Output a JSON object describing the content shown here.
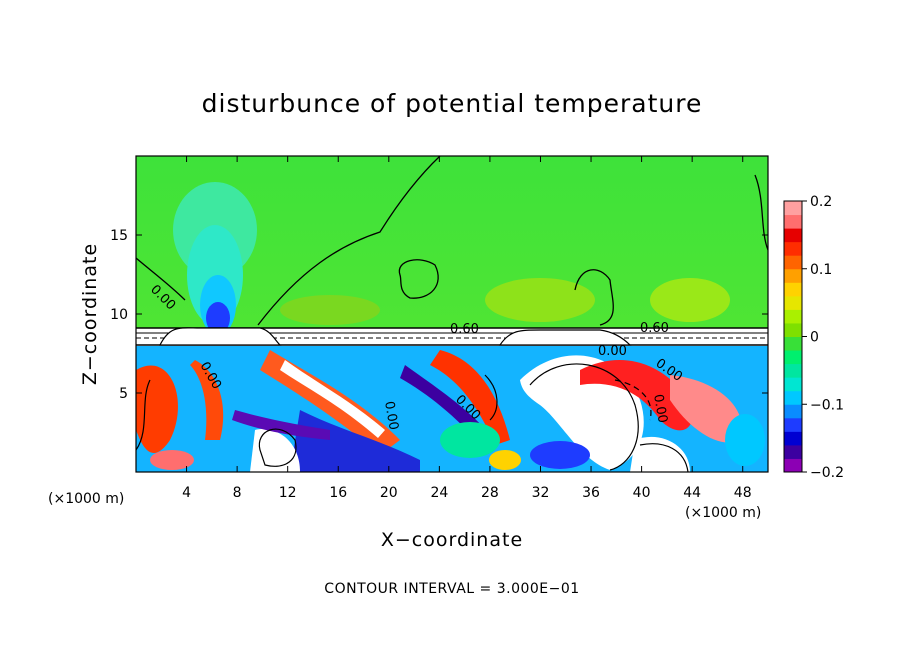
{
  "chart_data": {
    "type": "heatmap",
    "title": "disturbunce of potential temperature",
    "xlabel": "X−coordinate",
    "ylabel": "Z−coordinate",
    "x_unit": "(×1000 m)",
    "z_unit": "(×1000 m)",
    "xlim": [
      0,
      50
    ],
    "ylim": [
      0,
      20
    ],
    "x_ticks": [
      4,
      8,
      12,
      16,
      20,
      24,
      28,
      32,
      36,
      40,
      44,
      48
    ],
    "y_ticks": [
      5,
      10,
      15
    ],
    "colorbar": {
      "range": [
        -0.2,
        0.2
      ],
      "ticks": [
        "0.2",
        "0.1",
        "0",
        "−0.1",
        "−0.2"
      ],
      "colors": [
        "#8c00b4",
        "#3c00a0",
        "#0000d2",
        "#1e3cff",
        "#0a8cff",
        "#00c8ff",
        "#00e6d2",
        "#00e6a0",
        "#00f06e",
        "#38e038",
        "#7ee000",
        "#aaf000",
        "#e6e600",
        "#ffd200",
        "#ffa000",
        "#ff6400",
        "#ff2d00",
        "#e60000",
        "#ff6e6e",
        "#ffa0a0"
      ]
    },
    "contour_labels": [
      "0.00",
      "0.60",
      "0.60",
      "0.00",
      "0.00",
      "0.00",
      "0.00",
      "0.00",
      "0.00"
    ],
    "contour_interval_text": "CONTOUR INTERVAL = 3.000E−01"
  }
}
